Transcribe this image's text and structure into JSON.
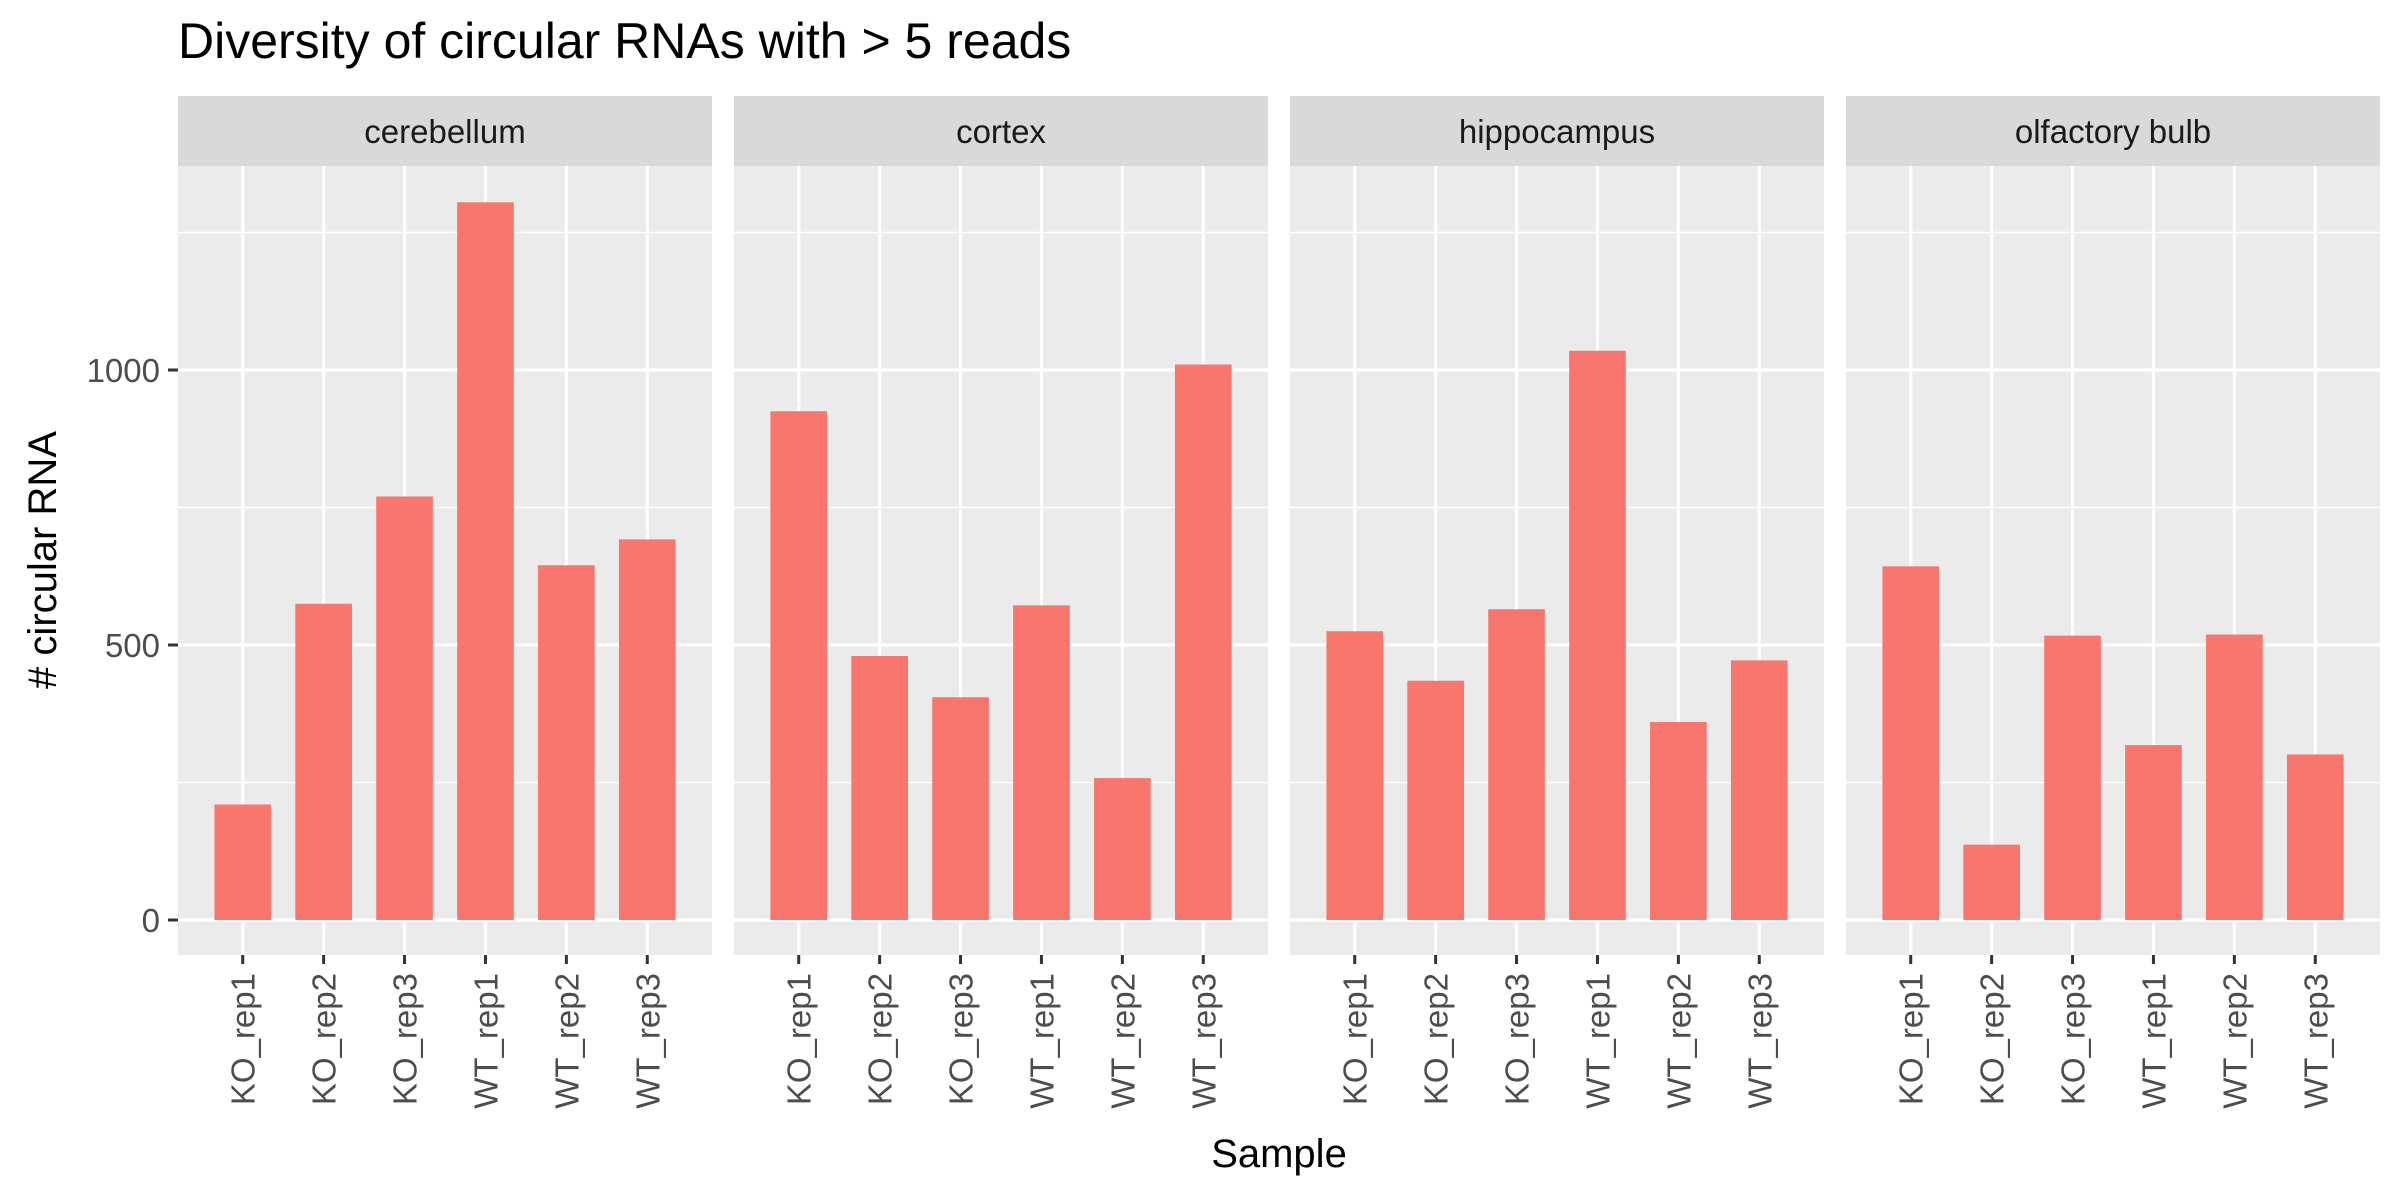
{
  "chart_data": {
    "type": "bar",
    "title": "Diversity of circular RNAs with > 5 reads",
    "xlabel": "Sample",
    "ylabel": "# circular RNA",
    "categories": [
      "KO_rep1",
      "KO_rep2",
      "KO_rep3",
      "WT_rep1",
      "WT_rep2",
      "WT_rep3"
    ],
    "yticks": [
      0,
      500,
      1000
    ],
    "ylim": [
      -65,
      1375
    ],
    "grid": true,
    "bar_color": "#F8766D",
    "panel_color": "#EBEBEB",
    "strip_color": "#D9D9D9",
    "facets": [
      {
        "name": "cerebellum",
        "values": [
          210,
          575,
          770,
          1305,
          645,
          692
        ]
      },
      {
        "name": "cortex",
        "values": [
          925,
          480,
          405,
          572,
          258,
          1010
        ]
      },
      {
        "name": "hippocampus",
        "values": [
          525,
          435,
          565,
          1035,
          360,
          472
        ]
      },
      {
        "name": "olfactory bulb",
        "values": [
          643,
          137,
          517,
          318,
          519,
          301
        ]
      }
    ]
  }
}
